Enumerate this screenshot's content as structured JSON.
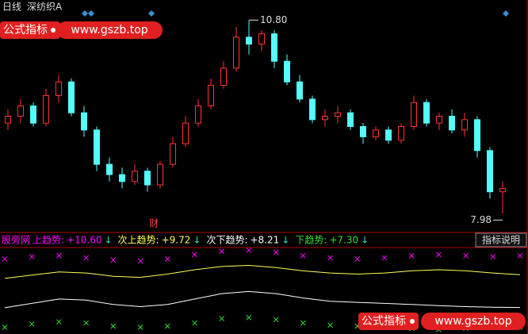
{
  "header": {
    "period": "日线",
    "stock": "深纺织A"
  },
  "watermark": {
    "title": "公式指标",
    "url": "www.gszb.top"
  },
  "button": "指标说明",
  "arrow": "↓",
  "chart_data": [
    {
      "type": "candlestick",
      "up_color": "#ff3232",
      "down_color": "#54fcfc",
      "ylim": [
        7.8,
        11.0
      ],
      "high_label": {
        "value": 10.8,
        "label": "10.80"
      },
      "low_label": {
        "value": 7.98,
        "label": "7.98"
      },
      "marker": "财",
      "candles": [
        [
          9.3,
          9.5,
          9.2,
          9.4
        ],
        [
          9.4,
          9.65,
          9.3,
          9.55
        ],
        [
          9.55,
          9.6,
          9.25,
          9.3
        ],
        [
          9.3,
          9.8,
          9.25,
          9.7
        ],
        [
          9.7,
          10.0,
          9.6,
          9.9
        ],
        [
          9.9,
          9.95,
          9.4,
          9.45
        ],
        [
          9.45,
          9.55,
          9.1,
          9.2
        ],
        [
          9.2,
          9.25,
          8.6,
          8.7
        ],
        [
          8.7,
          8.8,
          8.45,
          8.55
        ],
        [
          8.55,
          8.65,
          8.35,
          8.45
        ],
        [
          8.45,
          8.7,
          8.4,
          8.6
        ],
        [
          8.6,
          8.65,
          8.3,
          8.4
        ],
        [
          8.4,
          8.75,
          8.35,
          8.7
        ],
        [
          8.7,
          9.1,
          8.65,
          9.0
        ],
        [
          9.0,
          9.4,
          8.95,
          9.3
        ],
        [
          9.3,
          9.65,
          9.25,
          9.55
        ],
        [
          9.55,
          9.95,
          9.5,
          9.85
        ],
        [
          9.85,
          10.2,
          9.8,
          10.1
        ],
        [
          10.1,
          10.7,
          10.05,
          10.55
        ],
        [
          10.55,
          10.8,
          10.3,
          10.45
        ],
        [
          10.45,
          10.65,
          10.35,
          10.6
        ],
        [
          10.6,
          10.65,
          10.1,
          10.2
        ],
        [
          10.2,
          10.3,
          9.85,
          9.9
        ],
        [
          9.9,
          10.0,
          9.6,
          9.65
        ],
        [
          9.65,
          9.7,
          9.3,
          9.35
        ],
        [
          9.35,
          9.5,
          9.25,
          9.4
        ],
        [
          9.4,
          9.55,
          9.3,
          9.45
        ],
        [
          9.45,
          9.5,
          9.2,
          9.25
        ],
        [
          9.25,
          9.3,
          9.0,
          9.1
        ],
        [
          9.1,
          9.25,
          9.05,
          9.2
        ],
        [
          9.2,
          9.25,
          9.0,
          9.05
        ],
        [
          9.05,
          9.3,
          9.0,
          9.25
        ],
        [
          9.25,
          9.7,
          9.2,
          9.6
        ],
        [
          9.6,
          9.65,
          9.25,
          9.3
        ],
        [
          9.3,
          9.45,
          9.2,
          9.4
        ],
        [
          9.4,
          9.5,
          9.15,
          9.2
        ],
        [
          9.2,
          9.45,
          9.1,
          9.35
        ],
        [
          9.35,
          9.4,
          8.8,
          8.9
        ],
        [
          8.9,
          8.95,
          8.2,
          8.3
        ],
        [
          8.3,
          8.45,
          7.98,
          8.35
        ]
      ]
    },
    {
      "type": "line",
      "title": "股旁网",
      "ylim": [
        7.1,
        10.9
      ],
      "series": [
        {
          "name": "上趋势:",
          "color": "#ff00ff",
          "style": "cross",
          "last_label": "+10.60",
          "values": [
            10.45,
            10.55,
            10.6,
            10.5,
            10.4,
            10.35,
            10.45,
            10.65,
            10.8,
            10.85,
            10.75,
            10.6,
            10.5,
            10.45,
            10.5,
            10.6,
            10.65,
            10.6,
            10.55,
            10.6
          ]
        },
        {
          "name": "次上趋势:",
          "color": "#ffff55",
          "style": "line",
          "last_label": "+9.72",
          "values": [
            9.55,
            9.7,
            9.85,
            9.8,
            9.65,
            9.6,
            9.75,
            9.95,
            10.1,
            10.15,
            10.05,
            9.9,
            9.8,
            9.75,
            9.8,
            9.9,
            9.95,
            9.9,
            9.8,
            9.72
          ]
        },
        {
          "name": "次下趋势:",
          "color": "#ffffff",
          "style": "line",
          "last_label": "+8.21",
          "values": [
            8.2,
            8.4,
            8.6,
            8.55,
            8.35,
            8.25,
            8.35,
            8.6,
            8.85,
            8.95,
            8.85,
            8.65,
            8.5,
            8.45,
            8.4,
            8.35,
            8.3,
            8.25,
            8.22,
            8.21
          ]
        },
        {
          "name": "下趋势:",
          "color": "#33dd33",
          "style": "cross",
          "last_label": "+7.30",
          "values": [
            7.3,
            7.45,
            7.55,
            7.5,
            7.35,
            7.3,
            7.35,
            7.5,
            7.7,
            7.75,
            7.65,
            7.5,
            7.4,
            7.35,
            7.3,
            7.25,
            7.2,
            7.25,
            7.28,
            7.3
          ]
        }
      ]
    }
  ]
}
